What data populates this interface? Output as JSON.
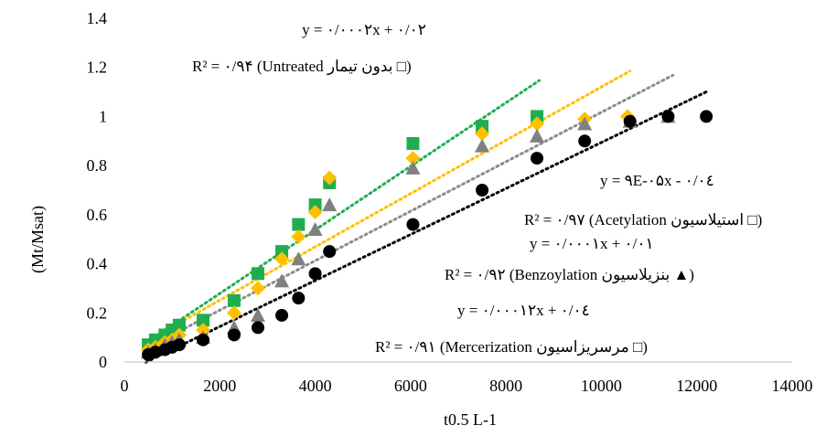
{
  "chart_data": {
    "type": "scatter",
    "xlabel": "t0.5 L-1",
    "ylabel": "(Mt/Msat)",
    "xlim": [
      0,
      14000
    ],
    "ylim": [
      0,
      1.4
    ],
    "x_ticks": [
      "0",
      "2000",
      "4000",
      "6000",
      "8000",
      "10000",
      "12000",
      "14000"
    ],
    "y_ticks": [
      "0",
      "0.2",
      "0.4",
      "0.6",
      "0.8",
      "1",
      "1.2",
      "1.4"
    ],
    "grid": false,
    "series": [
      {
        "name": "بدون تیمار (Untreated",
        "marker": "square",
        "color": "#1fae4f",
        "trend_color": "#1fae4f",
        "trend_x": [
          450,
          8700
        ],
        "equation": "y = ۰/۰۰۰۲x + ۰/۰۲",
        "r2": "R² = ۰/۹۴",
        "legend_text": "(Untreated بدون تیمار □)",
        "points": [
          [
            500,
            0.07
          ],
          [
            650,
            0.09
          ],
          [
            850,
            0.11
          ],
          [
            1000,
            0.13
          ],
          [
            1150,
            0.15
          ],
          [
            1650,
            0.17
          ],
          [
            2300,
            0.25
          ],
          [
            2800,
            0.36
          ],
          [
            3300,
            0.45
          ],
          [
            3650,
            0.56
          ],
          [
            4000,
            0.64
          ],
          [
            4300,
            0.73
          ],
          [
            6050,
            0.89
          ],
          [
            7500,
            0.96
          ],
          [
            8650,
            1.0
          ]
        ]
      },
      {
        "name": "Acetylation استیلاسیون",
        "marker": "diamond",
        "color": "#ffc000",
        "trend_color": "#ffc000",
        "trend_x": [
          450,
          10600
        ],
        "equation": "y = ۹E-۰۵x - ۰/۰٤",
        "r2": "R² = ۰/۹۷",
        "legend_text": "(Acetylation استیلاسیون □)",
        "points": [
          [
            500,
            0.05
          ],
          [
            650,
            0.06
          ],
          [
            850,
            0.08
          ],
          [
            1000,
            0.09
          ],
          [
            1150,
            0.11
          ],
          [
            1650,
            0.13
          ],
          [
            2300,
            0.2
          ],
          [
            2800,
            0.3
          ],
          [
            3300,
            0.42
          ],
          [
            3650,
            0.51
          ],
          [
            4000,
            0.61
          ],
          [
            4300,
            0.75
          ],
          [
            6050,
            0.83
          ],
          [
            7500,
            0.93
          ],
          [
            8650,
            0.97
          ],
          [
            9650,
            0.99
          ],
          [
            10550,
            1.0
          ]
        ]
      },
      {
        "name": "Benzoylation بنزیلاسیون",
        "marker": "triangle",
        "color": "#808080",
        "trend_color": "#8c8c8c",
        "trend_x": [
          450,
          11500
        ],
        "equation": "y = ۰/۰۰۰۱x + ۰/۰۱",
        "r2": "R² = ۰/۹۲",
        "legend_text": "(Benzoylation بنزیلاسیون ▲)",
        "points": [
          [
            500,
            0.04
          ],
          [
            650,
            0.05
          ],
          [
            850,
            0.07
          ],
          [
            1000,
            0.08
          ],
          [
            1150,
            0.09
          ],
          [
            1650,
            0.1
          ],
          [
            2300,
            0.14
          ],
          [
            2800,
            0.19
          ],
          [
            3300,
            0.33
          ],
          [
            3650,
            0.42
          ],
          [
            4000,
            0.54
          ],
          [
            4300,
            0.64
          ],
          [
            6050,
            0.79
          ],
          [
            7500,
            0.88
          ],
          [
            8650,
            0.92
          ],
          [
            9650,
            0.97
          ],
          [
            10600,
            0.98
          ],
          [
            11400,
            1.0
          ]
        ]
      },
      {
        "name": "Mercerization مرسریزاسیون",
        "marker": "circle",
        "color": "#000000",
        "trend_color": "#000000",
        "trend_x": [
          450,
          12200
        ],
        "equation": "y = ۰/۰۰۰۱۲x + ۰/۰٤",
        "r2": "R² = ۰/۹۱",
        "legend_text": "(Mercerization مرسریزاسیون □)",
        "points": [
          [
            500,
            0.03
          ],
          [
            650,
            0.04
          ],
          [
            850,
            0.05
          ],
          [
            1000,
            0.06
          ],
          [
            1150,
            0.07
          ],
          [
            1650,
            0.09
          ],
          [
            2300,
            0.11
          ],
          [
            2800,
            0.14
          ],
          [
            3300,
            0.19
          ],
          [
            3650,
            0.26
          ],
          [
            4000,
            0.36
          ],
          [
            4300,
            0.45
          ],
          [
            6050,
            0.56
          ],
          [
            7500,
            0.7
          ],
          [
            8650,
            0.83
          ],
          [
            9650,
            0.9
          ],
          [
            10600,
            0.98
          ],
          [
            11400,
            1.0
          ],
          [
            12200,
            1.0
          ]
        ]
      }
    ]
  },
  "annotations": {
    "untreated_eq": "y = ۰/۰۰۰۲x + ۰/۰۲",
    "untreated_r2": "R² = ۰/۹۴  (Untreated بدون تیمار □)",
    "acetylation_eq": "y = ۹E-۰۵x - ۰/۰٤",
    "acetylation_r2": "R² = ۰/۹۷ (Acetylation استیلاسیون □)",
    "benzoylation_eq": "y = ۰/۰۰۰۱x + ۰/۰۱",
    "benzoylation_r2": "R² = ۰/۹۲ (Benzoylation بنزیلاسیون ▲)",
    "mercerization_eq": "y = ۰/۰۰۰۱۲x + ۰/۰٤",
    "mercerization_r2": "R² = ۰/۹۱ (Mercerization مرسریزاسیون □)"
  }
}
